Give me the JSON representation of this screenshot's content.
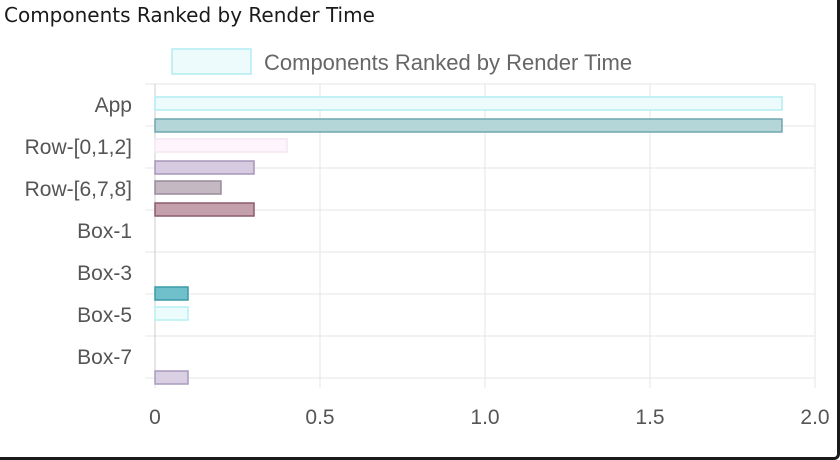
{
  "header": {
    "title": "Components Ranked by Render Time"
  },
  "chart_data": {
    "type": "bar",
    "orientation": "horizontal",
    "title": "Components Ranked by Render Time",
    "xlabel": "",
    "ylabel": "",
    "xlim": [
      0,
      2.0
    ],
    "x_ticks": [
      0,
      0.5,
      1.0,
      1.5,
      2.0
    ],
    "x_tick_labels": [
      "0",
      "0.5",
      "1.0",
      "1.5",
      "2.0"
    ],
    "grid": true,
    "legend_position": "top-center",
    "categories": [
      "App",
      "Row-[0,1,2]",
      "Row-[6,7,8]",
      "Box-1",
      "Box-3",
      "Box-5",
      "Box-7"
    ],
    "series": [
      {
        "name": "Components Ranked by Render Time",
        "values": [
          1.9,
          0.4,
          0.2,
          0,
          0,
          0.1,
          0
        ],
        "fills": [
          "#eefbfd",
          "#fdf5fb",
          "#c4b8c3",
          "#ffffff",
          "#ffffff",
          "#ecfcfd",
          "#ffffff"
        ],
        "strokes": [
          "#b2ecf2",
          "#f3e6f1",
          "#9a8b99",
          "#dddddd",
          "#dddddd",
          "#b5f0f4",
          "#dddddd"
        ]
      },
      {
        "name": "",
        "values": [
          1.9,
          0.3,
          0.3,
          0,
          0.1,
          0,
          0.1
        ],
        "fills": [
          "#b4d6d9",
          "#d6cbe0",
          "#c4a0ad",
          "#ffffff",
          "#70c0cb",
          "#ffffff",
          "#d9d0e3"
        ],
        "strokes": [
          "#6fa7ad",
          "#a695bb",
          "#8c5a6e",
          "#dddddd",
          "#3a9aa6",
          "#dddddd",
          "#a99bbd"
        ]
      }
    ],
    "legend": {
      "label": "Components Ranked by Render Time",
      "swatch_fill": "#eefbfd",
      "swatch_stroke": "#b2ecf2"
    },
    "colors": {
      "grid": "#e6e6e6",
      "tick_text": "#555555"
    }
  }
}
